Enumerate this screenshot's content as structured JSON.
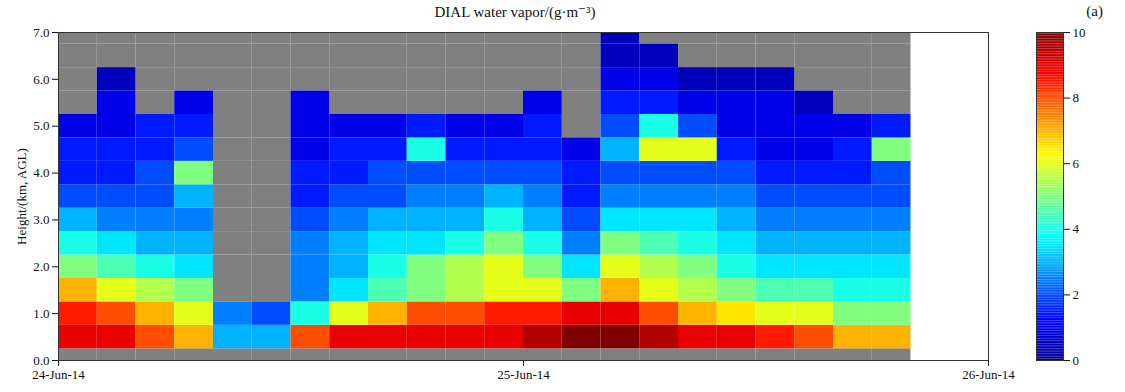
{
  "chart_data": {
    "type": "heatmap",
    "title": "DIAL water vapor/(g·m⁻³)",
    "panel_label": "(a)",
    "y_label": "Height/(km, AGL)",
    "xlim": [
      0,
      48
    ],
    "xticks": [
      {
        "value": 0,
        "label": "24-Jun-14"
      },
      {
        "value": 24,
        "label": "25-Jun-14"
      },
      {
        "value": 48,
        "label": "26-Jun-14"
      }
    ],
    "ylim": [
      0,
      7
    ],
    "yticks": [
      0,
      1,
      2,
      3,
      4,
      5,
      6,
      7
    ],
    "x_edges": [
      0,
      2,
      4,
      6,
      8,
      10,
      12,
      14,
      16,
      18,
      20,
      22,
      24,
      26,
      28,
      30,
      32,
      34,
      36,
      38,
      40,
      42,
      44
    ],
    "y_edges": [
      0,
      0.25,
      0.75,
      1.25,
      1.75,
      2.25,
      2.75,
      3.25,
      3.75,
      4.25,
      4.75,
      5.25,
      5.75,
      6.25,
      6.75,
      7
    ],
    "cells": [
      [
        null,
        9,
        8.5,
        7,
        5,
        4,
        3,
        2,
        1.5,
        1.5,
        1,
        null,
        null,
        null,
        null
      ],
      [
        null,
        9,
        8,
        6,
        4.5,
        3.5,
        2.5,
        2,
        1.5,
        1.5,
        1,
        1,
        0.5,
        null,
        null
      ],
      [
        null,
        8,
        7,
        5.5,
        4,
        3,
        2.5,
        2,
        2,
        1.5,
        1.5,
        null,
        null,
        null,
        null
      ],
      [
        null,
        7,
        6,
        5,
        3.5,
        3,
        2.5,
        3,
        5,
        2,
        1.5,
        1,
        null,
        null,
        null
      ],
      [
        null,
        3,
        2.5,
        null,
        null,
        null,
        null,
        null,
        null,
        null,
        null,
        null,
        null,
        null,
        null
      ],
      [
        null,
        3,
        2,
        null,
        null,
        null,
        null,
        null,
        null,
        null,
        null,
        null,
        null,
        null,
        null
      ],
      [
        null,
        8,
        4,
        2.5,
        2.5,
        2.5,
        2,
        1.5,
        1.5,
        1,
        1,
        1,
        null,
        null,
        null
      ],
      [
        null,
        9,
        6,
        3.5,
        3,
        3,
        2.5,
        2,
        1.5,
        1.5,
        1,
        null,
        null,
        null,
        null
      ],
      [
        null,
        9,
        7,
        4.5,
        4,
        3.5,
        3,
        2,
        2,
        1.5,
        1,
        null,
        null,
        null,
        null
      ],
      [
        null,
        9,
        8,
        5,
        5,
        3.5,
        3,
        2.5,
        2,
        4,
        1.5,
        null,
        null,
        null,
        null
      ],
      [
        null,
        9,
        8,
        5.5,
        5.5,
        4,
        3,
        2.5,
        2,
        1.5,
        1,
        null,
        null,
        null,
        null
      ],
      [
        null,
        9,
        8.5,
        6,
        6,
        5,
        4,
        3,
        2,
        1.5,
        1,
        null,
        null,
        null,
        null
      ],
      [
        null,
        9.5,
        8.5,
        6,
        5,
        4,
        3,
        2.5,
        2,
        1.5,
        1.5,
        1,
        null,
        null,
        null
      ],
      [
        null,
        10,
        9,
        5,
        3.5,
        2.5,
        2,
        1.5,
        1.5,
        1,
        null,
        null,
        null,
        null,
        null
      ],
      [
        null,
        10,
        9,
        7,
        6,
        5,
        3.5,
        2.5,
        2,
        3,
        2,
        1.5,
        1,
        0.5,
        0.5
      ],
      [
        null,
        9.5,
        8,
        6,
        5.5,
        4.5,
        3.5,
        2.5,
        2,
        6,
        4,
        1.5,
        1,
        0.5,
        null
      ],
      [
        null,
        9,
        7,
        5.5,
        5,
        4,
        3.5,
        2.5,
        2,
        6,
        2,
        1,
        0.5,
        null,
        null
      ],
      [
        null,
        9,
        6.5,
        5,
        4,
        3.5,
        3,
        2.5,
        2,
        1.5,
        1,
        1,
        0.5,
        null,
        null
      ],
      [
        null,
        8.5,
        6,
        4.5,
        3.5,
        3,
        2.5,
        2,
        1.5,
        1,
        1,
        1,
        0.5,
        null,
        null
      ],
      [
        null,
        8,
        6,
        4.5,
        3.5,
        3,
        2.5,
        2,
        1.5,
        1,
        1,
        0.5,
        null,
        null,
        null
      ],
      [
        null,
        7,
        5,
        4,
        3.5,
        3,
        2.5,
        2,
        1.5,
        1.5,
        1,
        null,
        null,
        null,
        null
      ],
      [
        null,
        7,
        5,
        4,
        3.5,
        3,
        2.5,
        2,
        2,
        5,
        1.5,
        null,
        null,
        null,
        null
      ]
    ],
    "colorbar": {
      "lim": [
        0,
        10
      ],
      "ticks": [
        0,
        2,
        4,
        6,
        8,
        10
      ]
    }
  }
}
